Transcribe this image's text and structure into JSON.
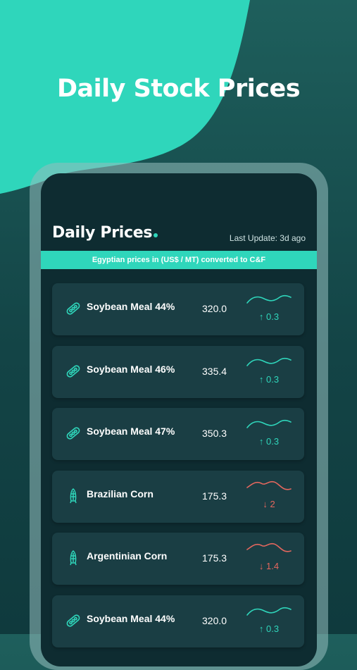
{
  "hero_title": "Daily Stock Prices",
  "header": {
    "title": "Daily Prices",
    "last_update": "Last Update: 3d ago"
  },
  "banner": "Egyptian prices in (US$ / MT) converted to C&F",
  "colors": {
    "accent": "#2fd6bb",
    "up": "#2fd6bb",
    "down": "#e5675e",
    "card": "#1a3e44",
    "screen": "#0e2c31"
  },
  "prices": [
    {
      "name": "Soybean Meal 44%",
      "price": "320.0",
      "change": "↑ 0.3",
      "trend": "up",
      "icon": "soybean-icon"
    },
    {
      "name": "Soybean Meal 46%",
      "price": "335.4",
      "change": "↑ 0.3",
      "trend": "up",
      "icon": "soybean-icon"
    },
    {
      "name": "Soybean Meal 47%",
      "price": "350.3",
      "change": "↑ 0.3",
      "trend": "up",
      "icon": "soybean-icon"
    },
    {
      "name": "Brazilian Corn",
      "price": "175.3",
      "change": "↓ 2",
      "trend": "down",
      "icon": "corn-icon"
    },
    {
      "name": "Argentinian Corn",
      "price": "175.3",
      "change": "↓ 1.4",
      "trend": "down",
      "icon": "corn-icon"
    },
    {
      "name": "Soybean Meal 44%",
      "price": "320.0",
      "change": "↑ 0.3",
      "trend": "up",
      "icon": "soybean-icon"
    }
  ]
}
